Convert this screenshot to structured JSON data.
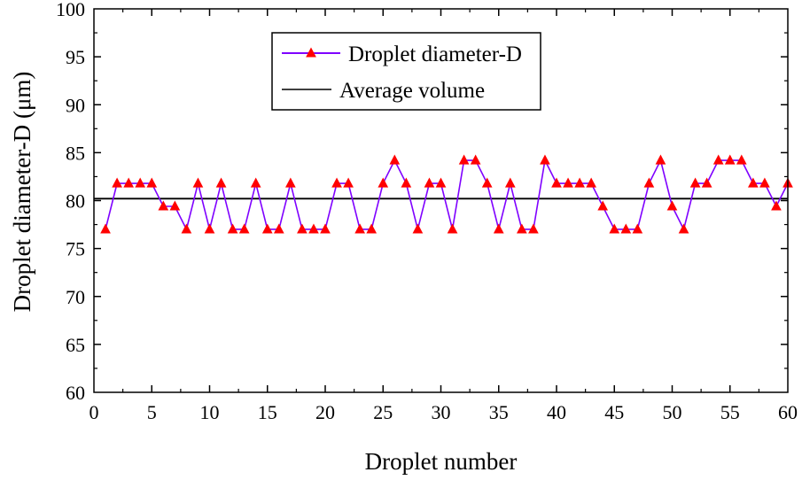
{
  "chart_data": {
    "type": "line",
    "title": "",
    "xlabel": "Droplet number",
    "ylabel": "Droplet diameter-D (μm)",
    "xlim": [
      0,
      60
    ],
    "ylim": [
      60,
      100
    ],
    "x_ticks": [
      0,
      5,
      10,
      15,
      20,
      25,
      30,
      35,
      40,
      45,
      50,
      55,
      60
    ],
    "y_ticks": [
      60,
      65,
      70,
      75,
      80,
      85,
      90,
      95,
      100
    ],
    "grid": false,
    "legend_position": "top-center",
    "series": [
      {
        "name": "Droplet diameter-D",
        "line_color": "#7f00ff",
        "marker": "triangle",
        "marker_color": "#ff0000",
        "x": [
          1,
          2,
          3,
          4,
          5,
          6,
          7,
          8,
          9,
          10,
          11,
          12,
          13,
          14,
          15,
          16,
          17,
          18,
          19,
          20,
          21,
          22,
          23,
          24,
          25,
          26,
          27,
          28,
          29,
          30,
          31,
          32,
          33,
          34,
          35,
          36,
          37,
          38,
          39,
          40,
          41,
          42,
          43,
          44,
          45,
          46,
          47,
          48,
          49,
          50,
          51,
          52,
          53,
          54,
          55,
          56,
          57,
          58,
          59,
          60
        ],
        "values": [
          77,
          81.8,
          81.8,
          81.8,
          81.8,
          79.4,
          79.4,
          77,
          81.8,
          77,
          81.8,
          77,
          77,
          81.8,
          77,
          77,
          81.8,
          77,
          77,
          77,
          81.8,
          81.8,
          77,
          77,
          81.8,
          84.2,
          81.8,
          77,
          81.8,
          81.8,
          77,
          84.2,
          84.2,
          81.8,
          77,
          81.8,
          77,
          77,
          84.2,
          81.8,
          81.8,
          81.8,
          81.8,
          79.4,
          77,
          77,
          77,
          81.8,
          84.2,
          79.4,
          77,
          81.8,
          81.8,
          84.2,
          84.2,
          84.2,
          81.8,
          81.8,
          79.4,
          81.8
        ]
      },
      {
        "name": "Average volume",
        "line_color": "#000000",
        "type": "hline",
        "value": 80.2
      }
    ]
  }
}
